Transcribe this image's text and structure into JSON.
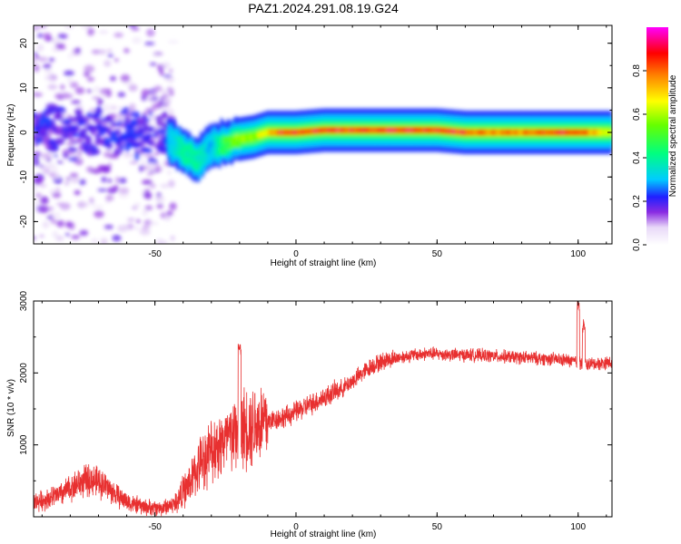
{
  "title": "PAZ1.2024.291.08.19.G24",
  "chart_data": [
    {
      "type": "heatmap",
      "xlabel": "Height of straight line (km)",
      "ylabel": "Frequency (Hz)",
      "xlim": [
        -93,
        112
      ],
      "ylim": [
        -25,
        24
      ],
      "xticks": [
        -50,
        0,
        50,
        100
      ],
      "yticks": [
        -20,
        -10,
        0,
        10,
        20
      ],
      "colorbar": {
        "label": "Normalized spectral amplitude",
        "range": [
          0,
          1
        ],
        "ticks": [
          0.0,
          0.2,
          0.4,
          0.6,
          0.8
        ],
        "tick_labels": [
          "0.0",
          "0.2",
          "0.4",
          "0.6",
          "0.8"
        ],
        "colormap": "rainbow (white-violet-blue-cyan-green-yellow-red-magenta)"
      },
      "ridge": {
        "description": "spectral peak frequency along the profile",
        "x": [
          -45,
          -40,
          -35,
          -30,
          -25,
          -20,
          -15,
          -10,
          -5,
          0,
          10,
          20,
          30,
          40,
          50,
          60,
          70,
          80,
          90,
          100,
          112
        ],
        "frequency": [
          -2.0,
          -4.0,
          -6.0,
          -3.0,
          -2.5,
          -1.5,
          -1.0,
          0.0,
          0.0,
          0.0,
          0.5,
          0.5,
          0.5,
          0.5,
          0.5,
          0.0,
          0.0,
          0.0,
          0.0,
          0.0,
          0.0
        ],
        "amplitude": [
          0.3,
          0.4,
          0.4,
          0.3,
          0.5,
          0.6,
          0.6,
          0.7,
          0.9,
          0.9,
          0.9,
          0.9,
          0.9,
          0.9,
          0.9,
          0.9,
          0.8,
          0.8,
          0.9,
          0.9,
          0.6
        ]
      },
      "noise_region": {
        "x_range": [
          -93,
          -43
        ],
        "frequency_range": [
          -25,
          24
        ],
        "typical_amplitude": 0.15
      }
    },
    {
      "type": "line",
      "xlabel": "Height of straight line (km)",
      "ylabel": "SNR (10 * v/v)",
      "xlim": [
        -93,
        112
      ],
      "ylim": [
        0,
        3000
      ],
      "xticks": [
        -50,
        0,
        50,
        100
      ],
      "yticks": [
        1000,
        2000,
        3000
      ],
      "color": "#e83030",
      "series": [
        {
          "x": [
            -93,
            -88,
            -83,
            -78,
            -73,
            -68,
            -63,
            -58,
            -53,
            -48,
            -43,
            -38,
            -33,
            -28,
            -23,
            -20,
            -18,
            -13,
            -8,
            -3,
            2,
            7,
            12,
            17,
            22,
            27,
            32,
            37,
            42,
            47,
            52,
            57,
            62,
            67,
            72,
            77,
            82,
            87,
            92,
            97,
            100,
            102,
            107,
            112
          ],
          "values": [
            200,
            250,
            320,
            450,
            520,
            450,
            280,
            180,
            130,
            120,
            180,
            450,
            800,
            1000,
            1100,
            1200,
            1250,
            1300,
            1350,
            1400,
            1500,
            1600,
            1700,
            1800,
            1950,
            2100,
            2180,
            2220,
            2250,
            2270,
            2260,
            2250,
            2250,
            2240,
            2230,
            2220,
            2210,
            2200,
            2190,
            2170,
            2150,
            2120,
            2130,
            2150
          ],
          "spikes": [
            {
              "x": -20,
              "value": 2450
            },
            {
              "x": 100,
              "value": 3000
            },
            {
              "x": 102,
              "value": 2750
            }
          ]
        }
      ]
    }
  ]
}
